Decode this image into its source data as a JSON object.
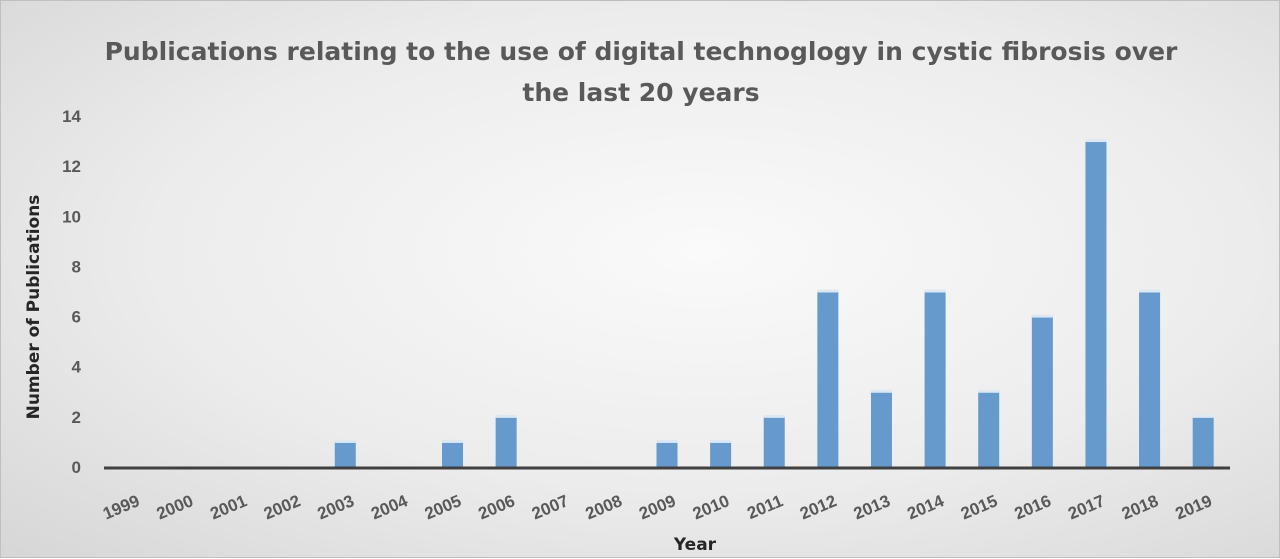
{
  "chart_data": {
    "type": "bar",
    "title_lines": [
      "Publications relating to the use of digital technoglogy in cystic fibrosis over",
      "the last 20 years"
    ],
    "xlabel": "Year",
    "ylabel": "Number of Publications",
    "categories": [
      "1999",
      "2000",
      "2001",
      "2002",
      "2003",
      "2004",
      "2005",
      "2006",
      "2007",
      "2008",
      "2009",
      "2010",
      "2011",
      "2012",
      "2013",
      "2014",
      "2015",
      "2016",
      "2017",
      "2018",
      "2019"
    ],
    "values": [
      0,
      0,
      0,
      0,
      1,
      0,
      1,
      2,
      0,
      0,
      1,
      1,
      2,
      7,
      3,
      7,
      3,
      6,
      13,
      7,
      2
    ],
    "ylim": [
      0,
      14
    ],
    "yticks": [
      "0",
      "2",
      "4",
      "6",
      "8",
      "10",
      "12",
      "14"
    ],
    "grid": false,
    "legend": "none",
    "colors": {
      "bar": "#6699cc",
      "bar_top": "#dce8f4",
      "axis": "#404040"
    }
  }
}
